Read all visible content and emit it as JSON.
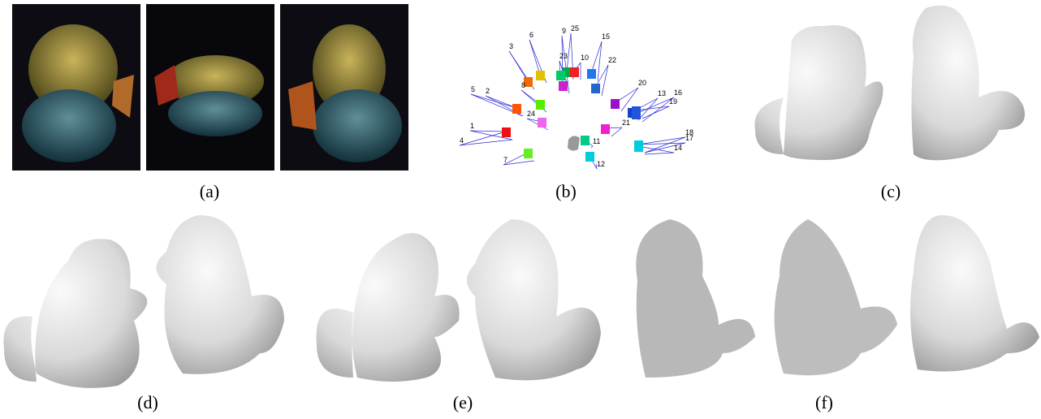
{
  "captions": {
    "a": "(a)",
    "b": "(b)",
    "c": "(c)",
    "d": "(d)",
    "e": "(e)",
    "f": "(f)"
  },
  "camera_labels": [
    "3",
    "6",
    "9",
    "25",
    "15",
    "23",
    "10",
    "22",
    "5",
    "2",
    "8",
    "20",
    "13",
    "16",
    "19",
    "24",
    "21",
    "1",
    "4",
    "18",
    "17",
    "11",
    "14",
    "7",
    "12"
  ]
}
